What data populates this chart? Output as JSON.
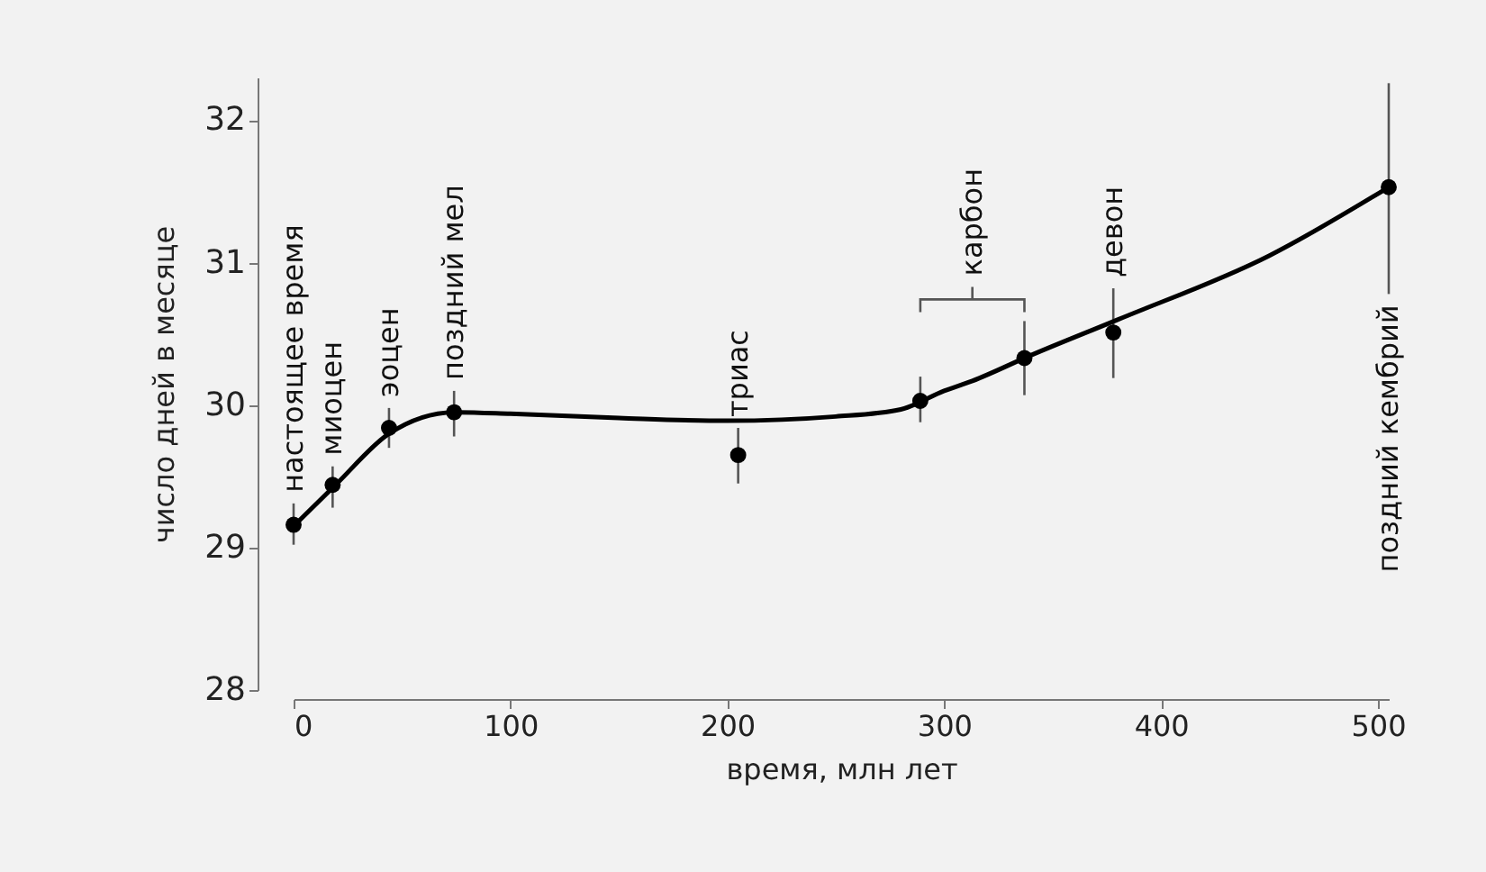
{
  "chart_data": {
    "type": "scatter",
    "xlabel": "время, млн лет",
    "ylabel": "число дней в месяце",
    "xlim": [
      0,
      505
    ],
    "xticks": [
      0,
      100,
      200,
      300,
      400,
      500
    ],
    "ylim": [
      28,
      32.3
    ],
    "yticks": [
      28,
      29,
      30,
      31,
      32
    ],
    "grid": false,
    "marker": "circle",
    "series": [
      {
        "type": "scatter",
        "color": "#000000",
        "x": [
          0,
          18,
          44,
          74,
          205,
          289,
          337,
          378,
          505
        ],
        "values": [
          29.16,
          29.44,
          29.84,
          29.95,
          29.65,
          30.03,
          30.33,
          30.51,
          31.53
        ],
        "errors": [
          [
            29.02,
            29.31
          ],
          [
            29.28,
            29.57
          ],
          [
            29.7,
            29.98
          ],
          [
            29.78,
            30.1
          ],
          [
            29.45,
            29.84
          ],
          [
            29.88,
            30.2
          ],
          [
            30.07,
            30.59
          ],
          [
            30.19,
            30.82
          ],
          [
            30.78,
            32.26
          ]
        ]
      },
      {
        "type": "line",
        "color": "#000000",
        "line_style": "solid",
        "marker": "none",
        "x": [
          0,
          20,
          44,
          74,
          100,
          150,
          200,
          250,
          280,
          300,
          313,
          340,
          380,
          450,
          505
        ],
        "values": [
          29.15,
          29.45,
          29.8,
          29.95,
          29.94,
          29.91,
          29.89,
          29.92,
          29.97,
          30.1,
          30.17,
          30.35,
          30.6,
          31.05,
          31.53
        ]
      }
    ],
    "annotations": [
      {
        "text": "настоящее время",
        "x": 0,
        "y": 29.16
      },
      {
        "text": "миоцен",
        "x": 18,
        "y": 29.44
      },
      {
        "text": "эоцен",
        "x": 44,
        "y": 29.84
      },
      {
        "text": "поздний мел",
        "x": 74,
        "y": 29.95
      },
      {
        "text": "триас",
        "x": 205,
        "y": 29.65
      },
      "карбон",
      {
        "text": "девон",
        "x": 378,
        "y": 30.51
      },
      {
        "text": "поздний кембрий",
        "x": 505,
        "y": 30.78
      }
    ]
  }
}
